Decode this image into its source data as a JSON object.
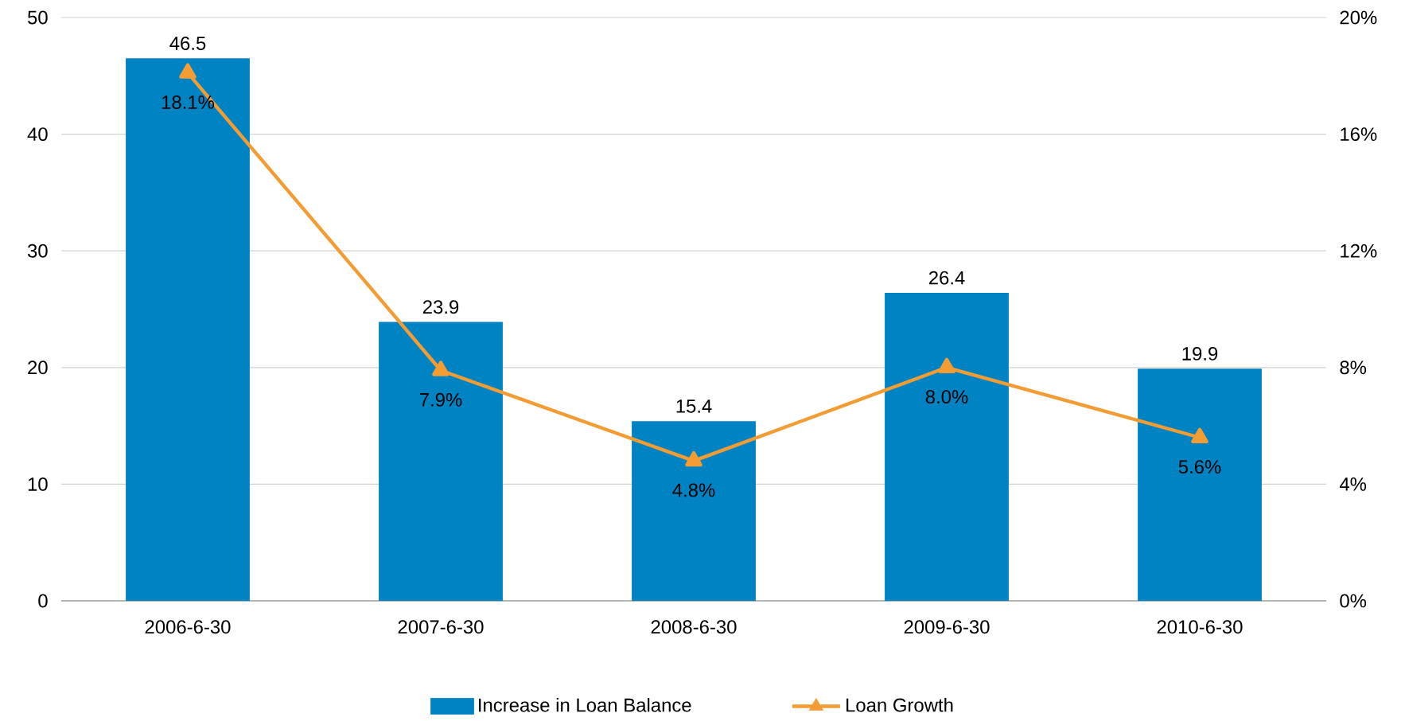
{
  "chart_data": {
    "type": "bar",
    "categories": [
      "2006-6-30",
      "2007-6-30",
      "2008-6-30",
      "2009-6-30",
      "2010-6-30"
    ],
    "series": [
      {
        "name": "Increase in Loan Balance",
        "color": "#0083c3",
        "values": [
          46.5,
          23.9,
          15.4,
          26.4,
          19.9
        ],
        "value_labels": [
          "46.5",
          "23.9",
          "15.4",
          "26.4",
          "19.9"
        ]
      },
      {
        "name": "Loan Growth",
        "type": "line",
        "axis": "y2",
        "color": "#f39c33",
        "marker": "triangle",
        "line_style": "solid",
        "values": [
          18.1,
          7.9,
          4.8,
          8.0,
          5.6
        ],
        "value_labels": [
          "18.1%",
          "7.9%",
          "4.8%",
          "8.0%",
          "5.6%"
        ]
      }
    ],
    "ylim": [
      0,
      50
    ],
    "yticks": [
      0,
      10,
      20,
      30,
      40,
      50
    ],
    "y2lim": [
      0,
      20
    ],
    "y2ticks": [
      {
        "value": 0,
        "label": "0%"
      },
      {
        "value": 4,
        "label": "4%"
      },
      {
        "value": 8,
        "label": "8%"
      },
      {
        "value": 12,
        "label": "12%"
      },
      {
        "value": 16,
        "label": "16%"
      },
      {
        "value": 20,
        "label": "20%"
      }
    ],
    "grid": "y",
    "legend": "bottom"
  }
}
